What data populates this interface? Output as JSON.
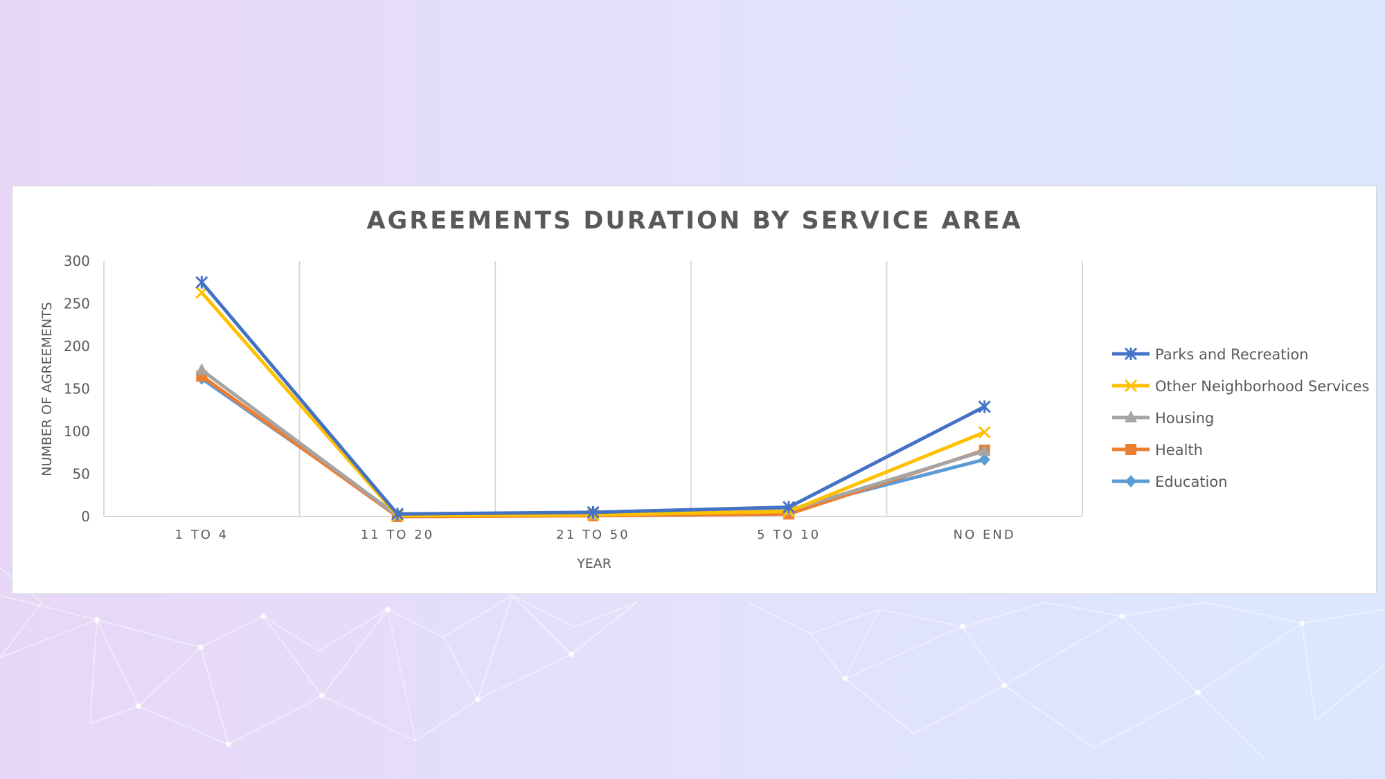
{
  "colors": {
    "parks": "#4472c4",
    "other": "#ffc000",
    "housing": "#a5a5a5",
    "health": "#ed7d31",
    "education": "#5b9bd5",
    "gridline": "#d9d9d9",
    "text": "#595959"
  },
  "chart_data": {
    "type": "line",
    "title": "AGREEMENTS DURATION BY SERVICE AREA",
    "xlabel": "YEAR",
    "ylabel": "NUMBER OF AGREEMENTS",
    "categories": [
      "1 TO 4",
      "11 TO 20",
      "21 TO 50",
      "5 TO 10",
      "NO END"
    ],
    "ylim": [
      0,
      300
    ],
    "yticks": [
      "0",
      "50",
      "100",
      "150",
      "200",
      "250",
      "300"
    ],
    "grid": "vertical",
    "legend_position": "right",
    "series": [
      {
        "name": "Parks and Recreation",
        "color_key": "parks",
        "marker": "asterisk",
        "values": [
          275,
          3,
          5,
          11,
          129
        ]
      },
      {
        "name": "Other Neighborhood Services",
        "color_key": "other",
        "marker": "x",
        "values": [
          263,
          1,
          2,
          6,
          99
        ]
      },
      {
        "name": "Housing",
        "color_key": "housing",
        "marker": "triangle",
        "values": [
          172,
          1,
          2,
          7,
          77
        ]
      },
      {
        "name": "Health",
        "color_key": "health",
        "marker": "square",
        "values": [
          165,
          0,
          1,
          3,
          78
        ]
      },
      {
        "name": "Education",
        "color_key": "education",
        "marker": "diamond",
        "values": [
          162,
          2,
          4,
          8,
          67
        ]
      }
    ]
  }
}
